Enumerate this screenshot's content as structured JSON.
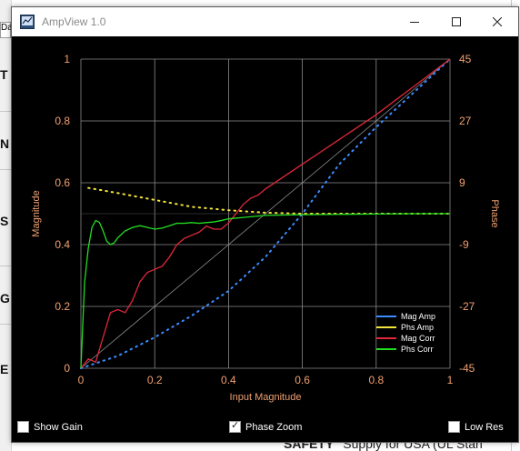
{
  "background": {
    "tab_label": "Da",
    "left_letters": [
      "T",
      "N",
      "S",
      "G",
      "E"
    ],
    "bottom_text": "SAFETY",
    "bottom_text_rest": "Supply  for USA (UL Stan"
  },
  "window": {
    "title": "AmpView 1.0",
    "icon": "app-icon",
    "controls": {
      "minimize": "minimize-icon",
      "maximize": "maximize-icon",
      "close": "close-icon"
    }
  },
  "chart_data": {
    "type": "line",
    "title": "",
    "xlabel": "Input Magnitude",
    "ylabel": "Magnitude",
    "y2label": "Phase",
    "xlim": [
      0,
      1
    ],
    "ylim": [
      0,
      1
    ],
    "y2lim": [
      -45,
      45
    ],
    "x_ticks": [
      "0",
      "0.2",
      "0.4",
      "0.6",
      "0.8",
      "1"
    ],
    "y_ticks": [
      "0",
      "0.2",
      "0.4",
      "0.6",
      "0.8",
      "1"
    ],
    "y2_ticks": [
      "-45",
      "-27",
      "-9",
      "9",
      "27",
      "45"
    ],
    "grid": true,
    "legend_position": "bottom-right",
    "reference_line": {
      "x": [
        0,
        1
      ],
      "y": [
        0,
        1
      ]
    },
    "series": [
      {
        "name": "Mag Amp",
        "color": "#3b8cff",
        "style": "dotted",
        "axis": "left",
        "x": [
          0,
          0.1,
          0.2,
          0.3,
          0.4,
          0.5,
          0.6,
          0.7,
          0.8,
          0.9,
          1.0
        ],
        "y": [
          0,
          0.04,
          0.1,
          0.17,
          0.25,
          0.36,
          0.5,
          0.66,
          0.78,
          0.89,
          1.0
        ]
      },
      {
        "name": "Phs Amp",
        "color": "#f2e33a",
        "style": "dotted",
        "axis": "right",
        "x": [
          0.02,
          0.1,
          0.2,
          0.3,
          0.4,
          0.5,
          0.6,
          0.7,
          0.8,
          0.9,
          1.0
        ],
        "y": [
          7.5,
          6.0,
          4.0,
          2.0,
          1.0,
          0.3,
          0.0,
          0.0,
          0.0,
          0.0,
          0.0
        ]
      },
      {
        "name": "Mag Corr",
        "color": "#e0283a",
        "style": "solid",
        "axis": "left",
        "x": [
          0,
          0.02,
          0.04,
          0.06,
          0.08,
          0.1,
          0.12,
          0.14,
          0.16,
          0.18,
          0.2,
          0.22,
          0.24,
          0.26,
          0.28,
          0.3,
          0.32,
          0.34,
          0.36,
          0.38,
          0.4,
          0.42,
          0.44,
          0.46,
          0.48,
          0.5,
          0.55,
          0.6,
          0.65,
          0.7,
          0.8,
          0.9,
          1.0
        ],
        "y": [
          0,
          0.03,
          0.02,
          0.1,
          0.18,
          0.19,
          0.18,
          0.22,
          0.28,
          0.31,
          0.32,
          0.33,
          0.36,
          0.4,
          0.42,
          0.43,
          0.44,
          0.46,
          0.45,
          0.45,
          0.47,
          0.5,
          0.53,
          0.55,
          0.56,
          0.58,
          0.62,
          0.66,
          0.7,
          0.74,
          0.82,
          0.91,
          1.0
        ]
      },
      {
        "name": "Phs Corr",
        "color": "#22dd22",
        "style": "solid",
        "axis": "right",
        "x": [
          0,
          0.01,
          0.02,
          0.03,
          0.04,
          0.05,
          0.06,
          0.07,
          0.08,
          0.09,
          0.1,
          0.12,
          0.14,
          0.16,
          0.18,
          0.2,
          0.22,
          0.24,
          0.26,
          0.28,
          0.3,
          0.32,
          0.34,
          0.36,
          0.38,
          0.4,
          0.45,
          0.5,
          0.6,
          0.7,
          0.8,
          0.9,
          1.0
        ],
        "y": [
          -45,
          -20,
          -10,
          -4,
          -2,
          -2.5,
          -5,
          -8,
          -9,
          -8.5,
          -7,
          -5,
          -4,
          -3.5,
          -4,
          -4.5,
          -4.2,
          -3.5,
          -2.8,
          -2.8,
          -2.6,
          -2.8,
          -2.6,
          -2.4,
          -2,
          -1.5,
          -1,
          -0.5,
          -0.3,
          -0.2,
          -0.1,
          0,
          0
        ]
      }
    ]
  },
  "options": {
    "show_gain": {
      "label": "Show Gain",
      "checked": false
    },
    "phase_zoom": {
      "label": "Phase Zoom",
      "checked": true
    },
    "low_res": {
      "label": "Low Res",
      "checked": false
    }
  }
}
